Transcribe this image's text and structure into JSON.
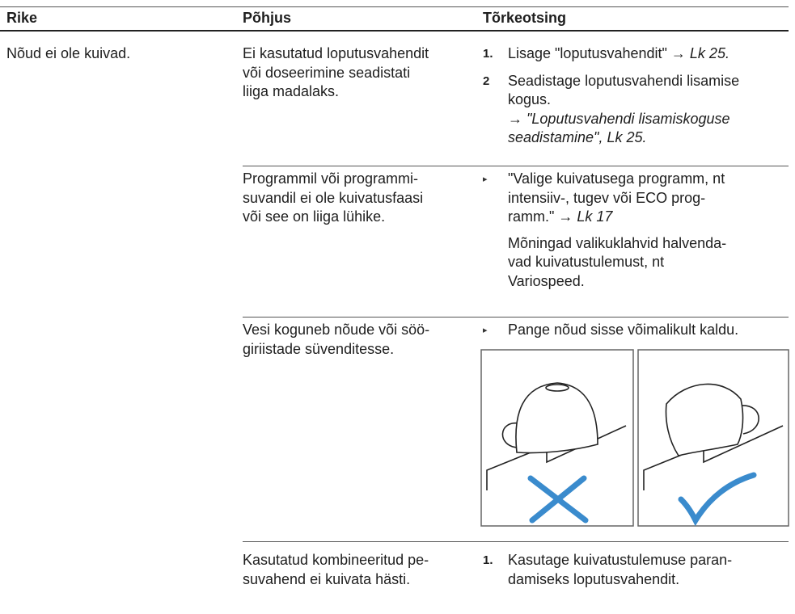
{
  "table": {
    "headers": [
      "Rike",
      "Põhjus",
      "Tõrkeotsing"
    ],
    "rows": [
      {
        "problem": "Nõud ei ole kuivad.",
        "causes": [
          {
            "cause": [
              "Ei kasutatud loputusvahendit",
              "või doseerimine seadistati",
              "liiga madalaks."
            ],
            "remedy": [
              {
                "marker": "1.",
                "lines": [
                  {
                    "text": "Lisage \"loputusvahendit\" → ",
                    "em": "Lk 25."
                  }
                ]
              },
              {
                "marker": "2",
                "lines": [
                  {
                    "text": "Seadistage loputusvahendi lisamise"
                  },
                  {
                    "text": "kogus."
                  },
                  {
                    "text": "→ ",
                    "em": "\"Loputusvahendi lisamiskoguse"
                  },
                  {
                    "em": "seadistamine\", Lk 25."
                  }
                ]
              }
            ]
          },
          {
            "cause": [
              "Programmil või programmi-",
              "suvandil ei ole kuivatusfaasi",
              "või see on liiga lühike."
            ],
            "remedy": [
              {
                "lines": [
                  {
                    "text": "\"Valige kuivatusega programm, nt"
                  },
                  {
                    "text": "intensiiv-, tugev või ECO prog-"
                  },
                  {
                    "text": "ramm.\" → ",
                    "em": "Lk 17"
                  }
                ]
              }
            ],
            "note": [
              "Mõningad valikuklahvid halvenda-",
              "vad kuivatustulemust, nt",
              "Variospeed."
            ]
          },
          {
            "cause": [
              "Vesi koguneb nõude või söö-",
              "giriistade süvenditesse."
            ],
            "remedy": [
              {
                "lines": [
                  {
                    "text": "Pange nõud sisse võimalikult kaldu."
                  }
                ]
              }
            ]
          },
          {
            "cause": [
              "Kasutatud kombineeritud pe-",
              "suvahend ei kuivata hästi."
            ],
            "remedy": [
              {
                "marker": "1.",
                "lines": [
                  {
                    "text": "Kasutage kuivatustulemuse paran-"
                  },
                  {
                    "text": "damiseks loputusvahendit."
                  }
                ]
              }
            ]
          }
        ]
      }
    ]
  }
}
